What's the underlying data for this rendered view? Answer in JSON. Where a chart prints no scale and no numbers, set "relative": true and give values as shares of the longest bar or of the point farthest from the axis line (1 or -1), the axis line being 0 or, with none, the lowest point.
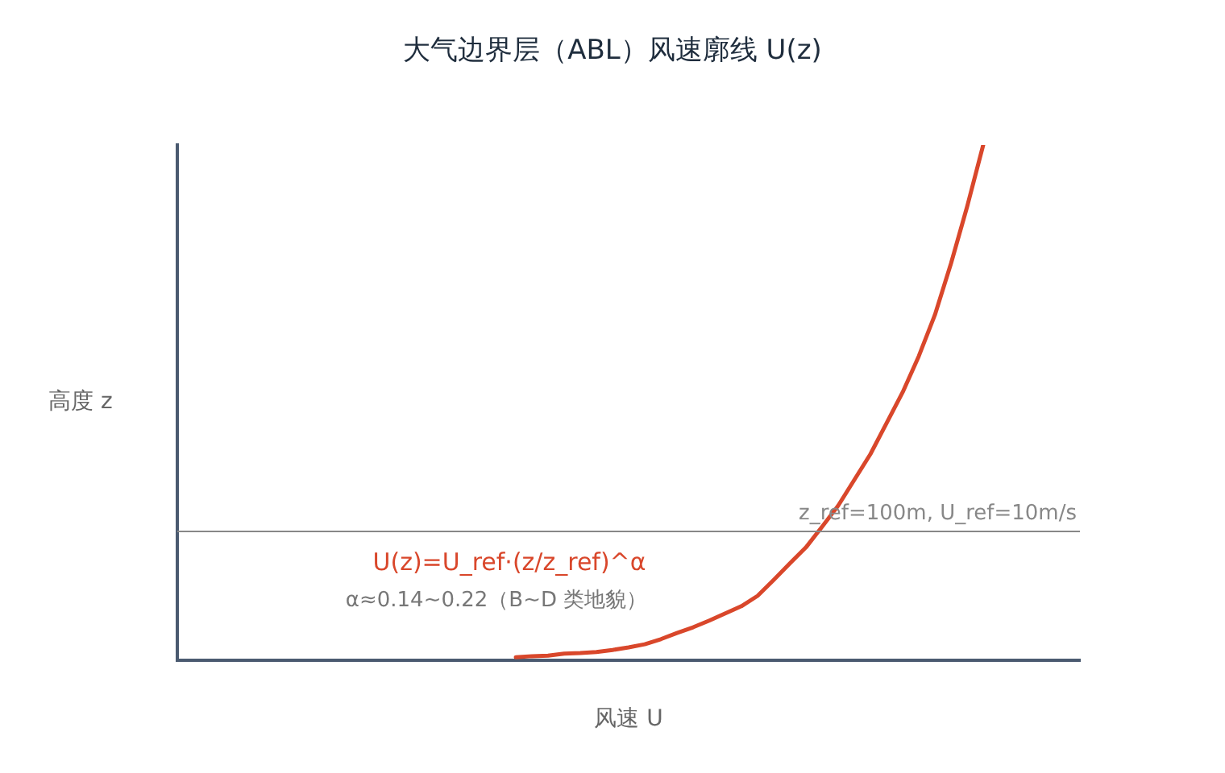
{
  "chart_data": {
    "type": "line",
    "title": "大气边界层（ABL）风速廓线 U(z)",
    "xlabel": "风速 U",
    "ylabel": "高度 z",
    "relative": true,
    "tick_labels": false,
    "grid": false,
    "legend": false,
    "marker": "none",
    "line_style": "solid",
    "categories": [
      null,
      null,
      null,
      null,
      null,
      null,
      null,
      null,
      null,
      null,
      null,
      null,
      null,
      null,
      null,
      null,
      null,
      null,
      null,
      null,
      null,
      null,
      null,
      null,
      null,
      null,
      null,
      null,
      null,
      null,
      null,
      null,
      null,
      null,
      null,
      null,
      null,
      null,
      null,
      null,
      null,
      null,
      null,
      null,
      null,
      null,
      null,
      null,
      null,
      null,
      null,
      null,
      null,
      null,
      null,
      null,
      null
    ],
    "series": [
      {
        "color": "#d9472b",
        "values": [
          null,
          null,
          null,
          null,
          null,
          null,
          null,
          null,
          null,
          null,
          null,
          null,
          null,
          null,
          null,
          null,
          null,
          null,
          null,
          null,
          null,
          0.006,
          0.008,
          0.009,
          0.013,
          0.014,
          0.016,
          0.02,
          0.025,
          0.031,
          0.041,
          0.053,
          0.064,
          0.077,
          0.091,
          0.105,
          0.125,
          0.156,
          0.188,
          0.219,
          0.259,
          0.3,
          0.35,
          0.4,
          0.46,
          0.52,
          0.59,
          0.67,
          0.77,
          0.88,
          1,
          null,
          null,
          null,
          null,
          null,
          null
        ]
      }
    ],
    "ref_lines": [
      {
        "axis": "y",
        "value": 0.25,
        "color": "#888888"
      }
    ],
    "annotations": [
      "z_ref=100m, U_ref=10m/s",
      "U(z)=U_ref·(z/z_ref)^α",
      "α≈0.14~0.22（B~D 类地貌）"
    ]
  }
}
